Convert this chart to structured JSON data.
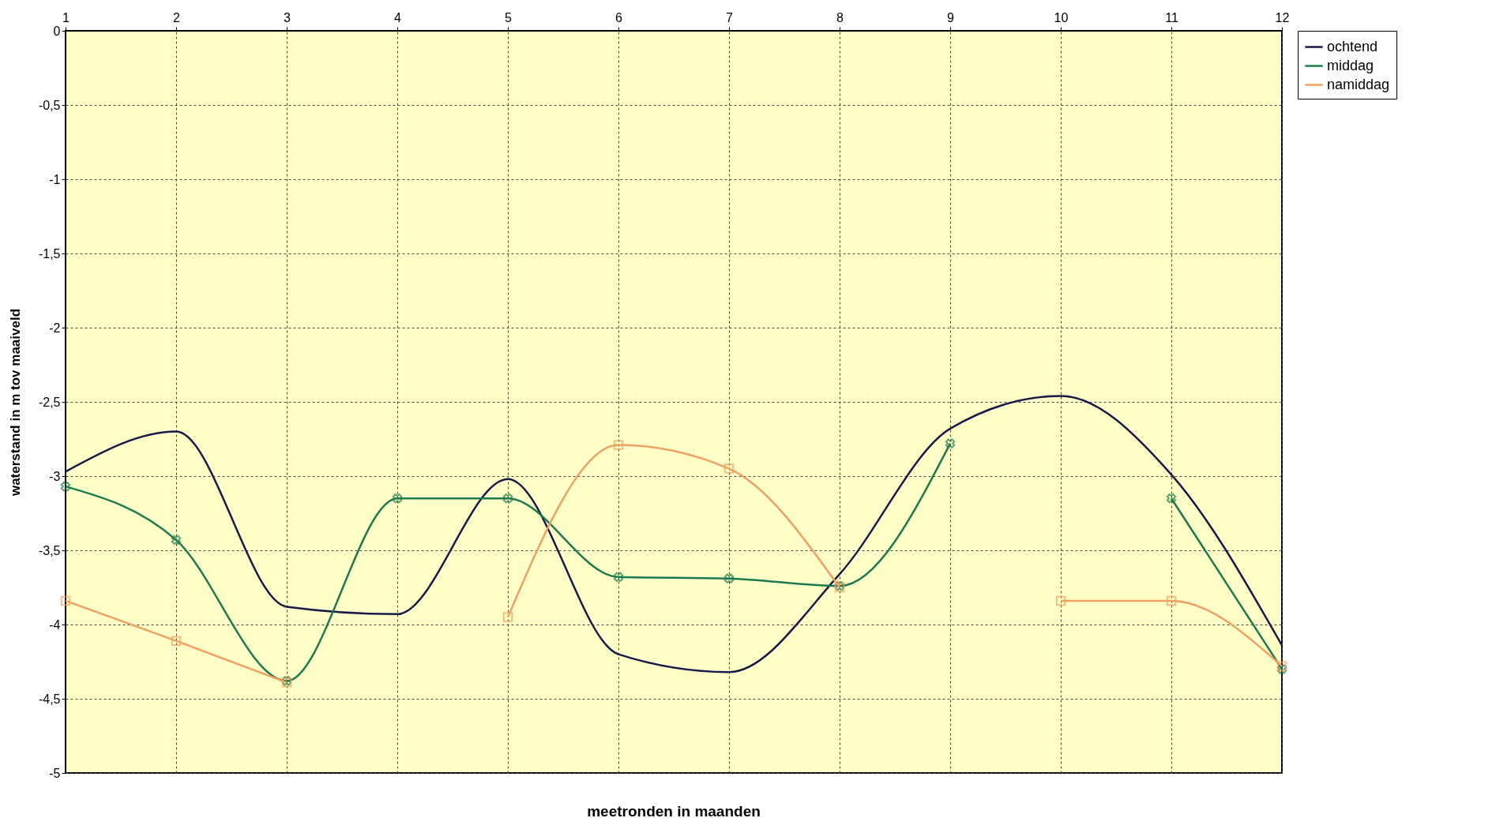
{
  "chart_data": {
    "type": "line",
    "xlabel": "meetronden in maanden",
    "ylabel": "waterstand in m tov maaiveld",
    "x": [
      1,
      2,
      3,
      4,
      5,
      6,
      7,
      8,
      9,
      10,
      11,
      12
    ],
    "xlim": [
      1,
      12
    ],
    "xticks": [
      1,
      2,
      3,
      4,
      5,
      6,
      7,
      8,
      9,
      10,
      11,
      12
    ],
    "ylim": [
      -5,
      0
    ],
    "yticks": [
      {
        "value": 0,
        "label": "0"
      },
      {
        "value": -0.5,
        "label": "-0,5"
      },
      {
        "value": -1,
        "label": "-1"
      },
      {
        "value": -1.5,
        "label": "-1,5"
      },
      {
        "value": -2,
        "label": "-2"
      },
      {
        "value": -2.5,
        "label": "-2,5"
      },
      {
        "value": -3,
        "label": "-3"
      },
      {
        "value": -3.5,
        "label": "-3,5"
      },
      {
        "value": -4,
        "label": "-4"
      },
      {
        "value": -4.5,
        "label": "-4,5"
      },
      {
        "value": -5,
        "label": "-5"
      }
    ],
    "grid": true,
    "legend": "right",
    "line_style": "solid",
    "series": [
      {
        "name": "ochtend",
        "color": "#1a1a4a",
        "marker": "none",
        "values": [
          -2.97,
          -2.7,
          -3.88,
          -3.93,
          -3.02,
          -4.2,
          -4.32,
          -3.66,
          -2.68,
          -2.46,
          -2.99,
          -4.14
        ]
      },
      {
        "name": "middag",
        "color": "#1e7a4e",
        "marker": "cross",
        "values": [
          -3.07,
          -3.43,
          -4.38,
          -3.15,
          -3.15,
          -3.68,
          -3.69,
          -3.74,
          -2.78,
          null,
          -3.15,
          -4.3
        ]
      },
      {
        "name": "namiddag",
        "color": "#f0a060",
        "marker": "square",
        "values": [
          -3.84,
          -4.11,
          -4.39,
          null,
          -3.95,
          -2.79,
          -2.95,
          -3.75,
          null,
          -3.84,
          -3.84,
          -4.28
        ]
      }
    ]
  }
}
